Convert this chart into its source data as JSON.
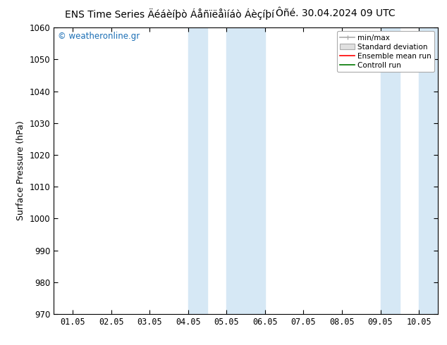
{
  "title": "ENS Time Series Äéáèíþò Áåñïëåìíáò Áèçíþí",
  "title_right": "Ôñé. 30.04.2024 09 UTC",
  "ylabel": "Surface Pressure (hPa)",
  "ylim": [
    970,
    1060
  ],
  "yticks": [
    970,
    980,
    990,
    1000,
    1010,
    1020,
    1030,
    1040,
    1050,
    1060
  ],
  "xtick_labels": [
    "01.05",
    "02.05",
    "03.05",
    "04.05",
    "05.05",
    "06.05",
    "07.05",
    "08.05",
    "09.05",
    "10.05"
  ],
  "shaded_bands": [
    {
      "xmin": 4.0,
      "xmax": 4.5,
      "color": "#d6e8f5"
    },
    {
      "xmin": 5.0,
      "xmax": 6.0,
      "color": "#d6e8f5"
    },
    {
      "xmin": 9.0,
      "xmax": 9.5,
      "color": "#d6e8f5"
    },
    {
      "xmin": 10.0,
      "xmax": 10.5,
      "color": "#d6e8f5"
    }
  ],
  "watermark": "© weatheronline.gr",
  "watermark_color": "#1a6eb5",
  "legend_entries": [
    "min/max",
    "Standard deviation",
    "Ensemble mean run",
    "Controll run"
  ],
  "legend_colors": [
    "#aaaaaa",
    "#cccccc",
    "#ff0000",
    "#007700"
  ],
  "background_color": "#ffffff",
  "title_fontsize": 10,
  "tick_fontsize": 8.5,
  "ylabel_fontsize": 9
}
